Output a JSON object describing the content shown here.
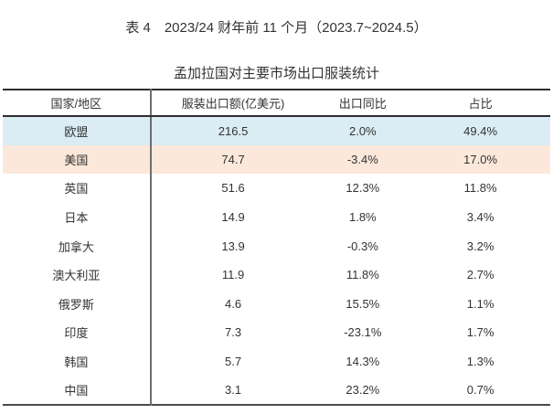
{
  "page": {
    "title": "表 4　2023/24 财年前 11 个月（2023.7~2024.5）",
    "subtitle": "孟加拉国对主要市场出口服装统计"
  },
  "table": {
    "columns": [
      "国家/地区",
      "服装出口额(亿美元)",
      "出口同比",
      "占比"
    ],
    "rows": [
      {
        "cells": [
          "欧盟",
          "216.5",
          "2.0%",
          "49.4%"
        ],
        "bg": "#daecf4"
      },
      {
        "cells": [
          "美国",
          "74.7",
          "-3.4%",
          "17.0%"
        ],
        "bg": "#fce8da"
      },
      {
        "cells": [
          "英国",
          "51.6",
          "12.3%",
          "11.8%"
        ],
        "bg": ""
      },
      {
        "cells": [
          "日本",
          "14.9",
          "1.8%",
          "3.4%"
        ],
        "bg": ""
      },
      {
        "cells": [
          "加拿大",
          "13.9",
          "-0.3%",
          "3.2%"
        ],
        "bg": ""
      },
      {
        "cells": [
          "澳大利亚",
          "11.9",
          "11.8%",
          "2.7%"
        ],
        "bg": ""
      },
      {
        "cells": [
          "俄罗斯",
          "4.6",
          "15.5%",
          "1.1%"
        ],
        "bg": ""
      },
      {
        "cells": [
          "印度",
          "7.3",
          "-23.1%",
          "1.7%"
        ],
        "bg": ""
      },
      {
        "cells": [
          "韩国",
          "5.7",
          "14.3%",
          "1.3%"
        ],
        "bg": ""
      },
      {
        "cells": [
          "中国",
          "3.1",
          "23.2%",
          "0.7%"
        ],
        "bg": ""
      }
    ],
    "colors": {
      "highlight_row_eu": "#daecf4",
      "highlight_row_us": "#fce8da",
      "border_top": "#2e2e2e",
      "border_bottom": "#4a4a4a",
      "column_divider": "#6e6e6e",
      "text": "#333333"
    }
  },
  "chart_data": {
    "type": "table",
    "title": "表 4　2023/24 财年前 11 个月（2023.7~2024.5）",
    "subtitle": "孟加拉国对主要市场出口服装统计",
    "columns": [
      "国家/地区",
      "服装出口额(亿美元)",
      "出口同比",
      "占比"
    ],
    "rows": [
      [
        "欧盟",
        216.5,
        "2.0%",
        "49.4%"
      ],
      [
        "美国",
        74.7,
        "-3.4%",
        "17.0%"
      ],
      [
        "英国",
        51.6,
        "12.3%",
        "11.8%"
      ],
      [
        "日本",
        14.9,
        "1.8%",
        "3.4%"
      ],
      [
        "加拿大",
        13.9,
        "-0.3%",
        "3.2%"
      ],
      [
        "澳大利亚",
        11.9,
        "11.8%",
        "2.7%"
      ],
      [
        "俄罗斯",
        4.6,
        "15.5%",
        "1.1%"
      ],
      [
        "印度",
        7.3,
        "-23.1%",
        "1.7%"
      ],
      [
        "韩国",
        5.7,
        "14.3%",
        "1.3%"
      ],
      [
        "中国",
        3.1,
        "23.2%",
        "0.7%"
      ]
    ],
    "layout_hints": {
      "highlighted_rows": {
        "欧盟": "#daecf4",
        "美国": "#fce8da"
      },
      "grid": "horizontal rules top/header/bottom only, vertical divider after first column",
      "alignment": "all cells centered"
    }
  }
}
